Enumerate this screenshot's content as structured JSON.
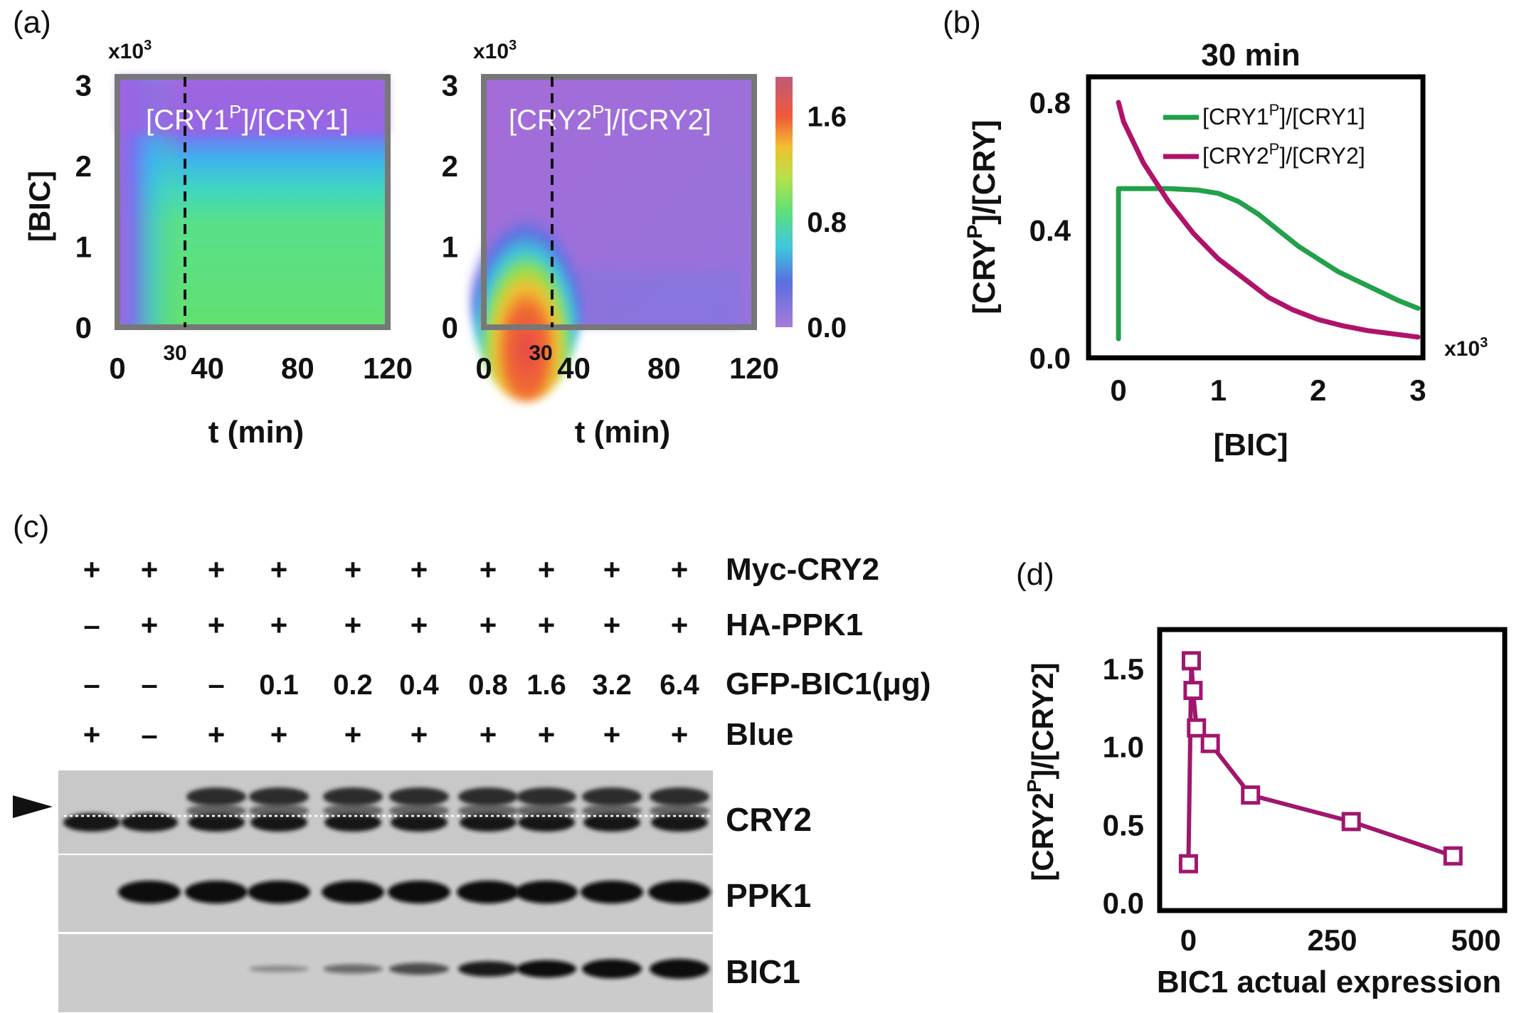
{
  "panels": {
    "a": {
      "label": "(a)"
    },
    "b": {
      "label": "(b)"
    },
    "c": {
      "label": "(c)"
    },
    "d": {
      "label": "(d)"
    }
  },
  "chart_data": [
    {
      "id": "a-left",
      "type": "heatmap",
      "title": "[CRY1P]/[CRY1]",
      "title_main": "[CRY1",
      "title_sup": "P",
      "title_rest": "]/[CRY1]",
      "xlabel": "t (min)",
      "ylabel": "[BIC]",
      "y_multiplier": "x10",
      "y_multiplier_exp": "3",
      "xticks": [
        "0",
        "40",
        "80",
        "120"
      ],
      "xtick_values": [
        0,
        40,
        80,
        120
      ],
      "yticks": [
        "0",
        "1",
        "2",
        "3"
      ],
      "ytick_values": [
        0,
        1,
        2,
        3
      ],
      "xlim": [
        0,
        120
      ],
      "ylim": [
        0,
        3.1
      ],
      "marker_label": "30",
      "marker_x": 30,
      "description_values": {
        "high_region_value": 0.9,
        "low_region_value": 0.0
      }
    },
    {
      "id": "a-right",
      "type": "heatmap",
      "title": "[CRY2P]/[CRY2]",
      "title_main": "[CRY2",
      "title_sup": "P",
      "title_rest": "]/[CRY2]",
      "xlabel": "t (min)",
      "ylabel": "",
      "y_multiplier": "x10",
      "y_multiplier_exp": "3",
      "xticks": [
        "0",
        "40",
        "80",
        "120"
      ],
      "xtick_values": [
        0,
        40,
        80,
        120
      ],
      "yticks": [
        "0",
        "1",
        "2",
        "3"
      ],
      "ytick_values": [
        0,
        1,
        2,
        3
      ],
      "xlim": [
        0,
        120
      ],
      "ylim": [
        0,
        3.1
      ],
      "marker_label": "30",
      "marker_x": 30,
      "colorbar": {
        "ticks": [
          "1.6",
          "0.8",
          "0.0"
        ],
        "tick_values": [
          1.6,
          0.8,
          0.0
        ],
        "range": [
          0,
          1.9
        ]
      }
    },
    {
      "id": "b",
      "type": "line",
      "title": "30 min",
      "xlabel": "[BIC]",
      "ylabel_main": "[CRY",
      "ylabel_sup": "P",
      "ylabel_rest": "]/[CRY]",
      "x_multiplier": "x10",
      "x_multiplier_exp": "3",
      "xticks": [
        "0",
        "1",
        "2",
        "3"
      ],
      "xtick_values": [
        0,
        1,
        2,
        3
      ],
      "yticks": [
        "0.0",
        "0.4",
        "0.8"
      ],
      "ytick_values": [
        0.0,
        0.4,
        0.8
      ],
      "xlim": [
        -0.3,
        3.05
      ],
      "ylim": [
        0.0,
        0.88
      ],
      "series": [
        {
          "name": "[CRY1P]/[CRY1]",
          "name_main": "[CRY1",
          "name_sup": "P",
          "name_rest": "]/[CRY1]",
          "color": "#22a04a",
          "x": [
            0,
            0,
            0.2,
            0.5,
            0.8,
            1.0,
            1.2,
            1.4,
            1.6,
            1.8,
            2.0,
            2.2,
            2.4,
            2.6,
            2.8,
            3.0
          ],
          "y": [
            0.06,
            0.53,
            0.53,
            0.53,
            0.525,
            0.515,
            0.49,
            0.45,
            0.4,
            0.35,
            0.31,
            0.27,
            0.24,
            0.21,
            0.18,
            0.155
          ]
        },
        {
          "name": "[CRY2P]/[CRY2]",
          "name_main": "[CRY2",
          "name_sup": "P",
          "name_rest": "]/[CRY2]",
          "color": "#b0126a",
          "x": [
            0,
            0.05,
            0.25,
            0.5,
            0.75,
            1.0,
            1.25,
            1.5,
            1.75,
            2.0,
            2.25,
            2.5,
            2.75,
            3.0
          ],
          "y": [
            0.8,
            0.74,
            0.61,
            0.49,
            0.39,
            0.31,
            0.25,
            0.19,
            0.15,
            0.12,
            0.1,
            0.085,
            0.075,
            0.065
          ]
        }
      ]
    },
    {
      "id": "d",
      "type": "line",
      "xlabel": "BIC1 actual expression",
      "ylabel_main": "[CRY2",
      "ylabel_sup": "P",
      "ylabel_rest": "]/[CRY2]",
      "xticks": [
        "0",
        "250",
        "500"
      ],
      "xtick_values": [
        0,
        250,
        500
      ],
      "yticks": [
        "0.0",
        "0.5",
        "1.0",
        "1.5"
      ],
      "ytick_values": [
        0.0,
        0.5,
        1.0,
        1.5
      ],
      "xlim": [
        -50,
        550
      ],
      "ylim": [
        -0.05,
        1.75
      ],
      "series": [
        {
          "name": "",
          "color": "#a0166e",
          "marker": "open-square",
          "x": [
            0,
            5,
            8,
            14,
            38,
            108,
            283,
            460
          ],
          "y": [
            0.25,
            1.55,
            1.36,
            1.12,
            1.02,
            0.69,
            0.52,
            0.3
          ]
        }
      ]
    }
  ],
  "blot": {
    "columns": 10,
    "row_labels": [
      "Myc-CRY2",
      "HA-PPK1",
      "GFP-BIC1(μg)",
      "Blue"
    ],
    "rows": [
      [
        "+",
        "+",
        "+",
        "+",
        "+",
        "+",
        "+",
        "+",
        "+",
        "+"
      ],
      [
        "–",
        "+",
        "+",
        "+",
        "+",
        "+",
        "+",
        "+",
        "+",
        "+"
      ],
      [
        "–",
        "–",
        "–",
        "0.1",
        "0.2",
        "0.4",
        "0.8",
        "1.6",
        "3.2",
        "6.4"
      ],
      [
        "+",
        "–",
        "+",
        "+",
        "+",
        "+",
        "+",
        "+",
        "+",
        "+"
      ]
    ],
    "band_labels": [
      "CRY2",
      "PPK1",
      "BIC1"
    ],
    "bic1_levels": [
      0.0,
      0.0,
      0.0,
      0.08,
      0.25,
      0.42,
      0.68,
      0.82,
      0.95,
      1.0
    ],
    "ppk1_present": [
      0,
      1,
      1,
      1,
      1,
      1,
      1,
      1,
      1,
      1
    ],
    "cry2_shifted": [
      0,
      0,
      1,
      1,
      1,
      1,
      1,
      1,
      1,
      1
    ]
  }
}
